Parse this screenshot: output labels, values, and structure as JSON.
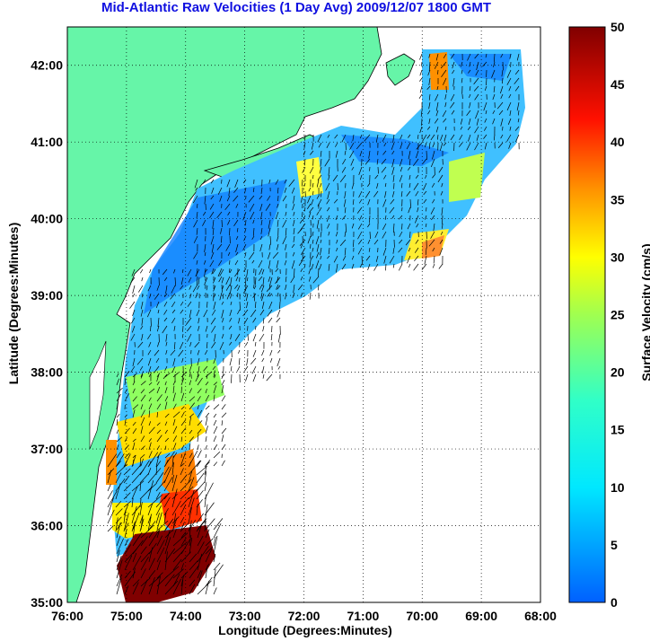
{
  "title": "Mid-Atlantic Raw Velocities (1 Day Avg) 2009/12/07 1800 GMT",
  "x_axis": {
    "label": "Longitude (Degrees:Minutes)",
    "ticks": [
      "76:00",
      "75:00",
      "74:00",
      "73:00",
      "72:00",
      "71:00",
      "70:00",
      "69:00",
      "68:00"
    ]
  },
  "y_axis": {
    "label": "Latitude (Degrees:Minutes)",
    "ticks": [
      "42:00",
      "41:00",
      "40:00",
      "39:00",
      "38:00",
      "37:00",
      "36:00",
      "35:00"
    ]
  },
  "colorbar": {
    "label": "Surface Velocity (cm/s)",
    "ticks": [
      "50",
      "45",
      "40",
      "35",
      "30",
      "25",
      "20",
      "15",
      "10",
      "5",
      "0"
    ],
    "range": [
      0,
      50
    ]
  },
  "colors": {
    "land": "#66f5a8",
    "title": "#1010e0",
    "arrows": "#000000",
    "grid": "#000000"
  },
  "map": {
    "extent": {
      "lon_min": -76,
      "lon_max": -68,
      "lat_min": 35,
      "lat_max": 42.5
    },
    "grid": "dotted"
  }
}
